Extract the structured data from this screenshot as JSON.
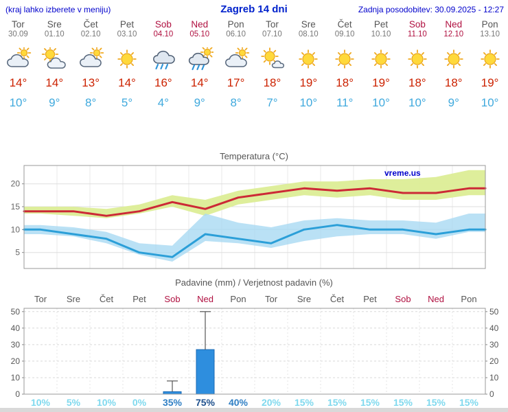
{
  "header": {
    "note": "(kraj lahko izberete v meniju)",
    "title": "Zagreb 14 dni",
    "updated": "Zadnja posodobitev: 30.09.2025 - 12:27"
  },
  "colors": {
    "accent_blue": "#0000cc",
    "temp_high": "#cc2200",
    "temp_low": "#3fa9dd",
    "weekend": "#b01040",
    "bar_fill": "#2e8ede",
    "band_max": "#dced96",
    "band_min": "#a6d9f2",
    "prob_low": "#7fd9ee",
    "prob_mid": "#2f7fc4",
    "prob_high": "#1d4f8c"
  },
  "days": [
    {
      "name": "Tor",
      "date": "30.09",
      "icon": "cloud-sun",
      "high": "14°",
      "low": "10°",
      "weekend": false
    },
    {
      "name": "Sre",
      "date": "01.10",
      "icon": "sun-cloud",
      "high": "14°",
      "low": "9°",
      "weekend": false
    },
    {
      "name": "Čet",
      "date": "02.10",
      "icon": "cloud-sun",
      "high": "13°",
      "low": "8°",
      "weekend": false
    },
    {
      "name": "Pet",
      "date": "03.10",
      "icon": "sun",
      "high": "14°",
      "low": "5°",
      "weekend": false
    },
    {
      "name": "Sob",
      "date": "04.10",
      "icon": "rain",
      "high": "16°",
      "low": "4°",
      "weekend": true
    },
    {
      "name": "Ned",
      "date": "05.10",
      "icon": "rain-sun",
      "high": "14°",
      "low": "9°",
      "weekend": true
    },
    {
      "name": "Pon",
      "date": "06.10",
      "icon": "cloud-sun",
      "high": "17°",
      "low": "8°",
      "weekend": false
    },
    {
      "name": "Tor",
      "date": "07.10",
      "icon": "sun-small-cloud",
      "high": "18°",
      "low": "7°",
      "weekend": false
    },
    {
      "name": "Sre",
      "date": "08.10",
      "icon": "sun",
      "high": "19°",
      "low": "10°",
      "weekend": false
    },
    {
      "name": "Čet",
      "date": "09.10",
      "icon": "sun",
      "high": "18°",
      "low": "11°",
      "weekend": false
    },
    {
      "name": "Pet",
      "date": "10.10",
      "icon": "sun",
      "high": "19°",
      "low": "10°",
      "weekend": false
    },
    {
      "name": "Sob",
      "date": "11.10",
      "icon": "sun",
      "high": "18°",
      "low": "10°",
      "weekend": true
    },
    {
      "name": "Ned",
      "date": "12.10",
      "icon": "sun",
      "high": "18°",
      "low": "9°",
      "weekend": true
    },
    {
      "name": "Pon",
      "date": "13.10",
      "icon": "sun",
      "high": "19°",
      "low": "10°",
      "weekend": false
    }
  ],
  "chart_data": [
    {
      "type": "line",
      "title": "Temperatura (°C)",
      "watermark": "vreme.us",
      "categories": [
        "Tor 30.09",
        "Sre 01.10",
        "Čet 02.10",
        "Pet 03.10",
        "Sob 04.10",
        "Ned 05.10",
        "Pon 06.10",
        "Tor 07.10",
        "Sre 08.10",
        "Čet 09.10",
        "Pet 10.10",
        "Sob 11.10",
        "Ned 12.10",
        "Pon 13.10"
      ],
      "ylim": [
        1.5,
        24
      ],
      "yticks": [
        5,
        10,
        15,
        20
      ],
      "grid": true,
      "legend": "none",
      "series": [
        {
          "name": "temp_max",
          "color": "#cc2936",
          "values": [
            14,
            14,
            13,
            14,
            16,
            14.5,
            17,
            18,
            19,
            18.5,
            19,
            18,
            18,
            19
          ]
        },
        {
          "name": "temp_min",
          "color": "#2b9fd8",
          "values": [
            10,
            9,
            8,
            5,
            4,
            9,
            8,
            7,
            10,
            11,
            10,
            10,
            9,
            10
          ]
        }
      ],
      "bands": [
        {
          "name": "max_range",
          "color": "#dced96",
          "hi": [
            15,
            15,
            14.5,
            15.5,
            17.5,
            16.5,
            18.5,
            19.5,
            20.5,
            20.5,
            21,
            21,
            21.5,
            23
          ],
          "lo": [
            13.5,
            13,
            12.5,
            13.5,
            15,
            13,
            15.5,
            16.5,
            17.5,
            17,
            17.5,
            16.5,
            16.5,
            17.5
          ]
        },
        {
          "name": "min_range",
          "color": "#a6d9f2",
          "hi": [
            11,
            10.5,
            9.5,
            7,
            6.5,
            13.5,
            11.5,
            10.5,
            12,
            12.5,
            12,
            12,
            11.5,
            13.5
          ],
          "lo": [
            9,
            8.5,
            7,
            4.5,
            3,
            7.5,
            7,
            6,
            7.5,
            8.5,
            9,
            9,
            8,
            9.5
          ]
        }
      ]
    },
    {
      "type": "bar",
      "title": "Padavine (mm) / Verjetnost padavin (%)",
      "categories": [
        "Tor",
        "Sre",
        "Čet",
        "Pet",
        "Sob",
        "Ned",
        "Pon",
        "Tor",
        "Sre",
        "Čet",
        "Pet",
        "Sob",
        "Ned",
        "Pon"
      ],
      "weekend_idx": [
        4,
        5,
        11,
        12
      ],
      "values": [
        0,
        0,
        0,
        0,
        1.5,
        27,
        0,
        0,
        0,
        0,
        0,
        0,
        0,
        0
      ],
      "whisker_max": [
        0,
        0,
        0,
        0,
        8,
        50,
        0,
        0,
        0,
        0,
        0,
        0,
        0,
        0
      ],
      "probability_pct": [
        10,
        5,
        10,
        0,
        35,
        75,
        40,
        20,
        15,
        15,
        15,
        15,
        15,
        15
      ],
      "ylim": [
        0,
        52
      ],
      "yticks": [
        0,
        10,
        20,
        30,
        40,
        50
      ],
      "grid": true
    }
  ]
}
